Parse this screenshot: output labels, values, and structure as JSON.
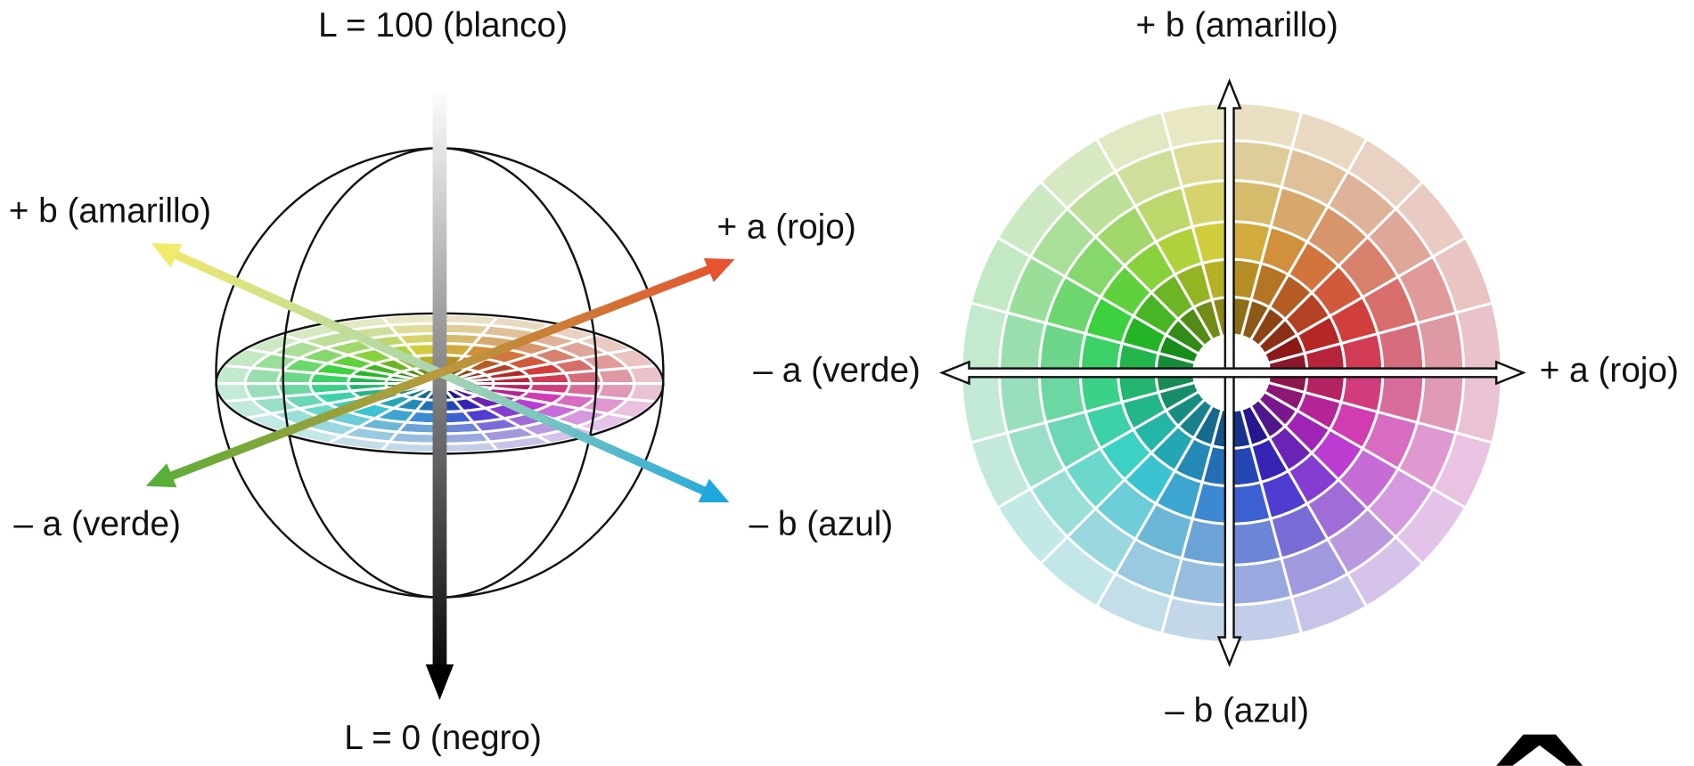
{
  "left": {
    "l_max": "L = 100 (blanco)",
    "plus_b": "+ b (amarillo)",
    "plus_a": "+ a (rojo)",
    "minus_a": "– a (verde)",
    "minus_b": "– b (azul)",
    "l_min": "L = 0 (negro)"
  },
  "right": {
    "plus_b": "+ b (amarillo)",
    "minus_a": "– a (verde)",
    "plus_a": "+ a (rojo)",
    "minus_b": "– b (azul)"
  }
}
